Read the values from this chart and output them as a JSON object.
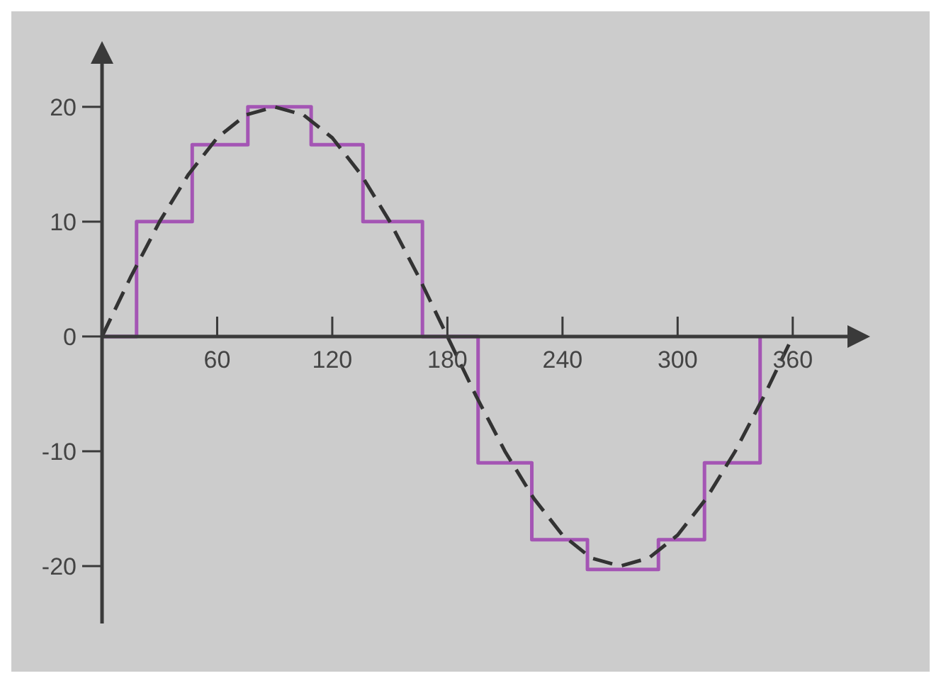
{
  "chart_data": {
    "type": "line",
    "xlim": [
      0,
      390
    ],
    "ylim": [
      -25,
      24
    ],
    "xticks": [
      {
        "value": 0,
        "label": null
      },
      60,
      120,
      180,
      240,
      300,
      360
    ],
    "yticks": [
      -20,
      -10,
      0,
      10,
      20
    ],
    "grid": false,
    "series": [
      {
        "type": "step",
        "color": "#a455b4",
        "line_style": "solid",
        "x": [
          0,
          18,
          47,
          76,
          109,
          136,
          167,
          196,
          224,
          253,
          290,
          314,
          343
        ],
        "values": [
          0,
          10,
          16.7,
          20,
          16.7,
          10,
          0,
          -11,
          -17.7,
          -20.3,
          -17.7,
          -11,
          0
        ]
      },
      {
        "color": "#333333",
        "line_style": "dashed",
        "x": [
          0,
          15,
          30,
          45,
          60,
          75,
          90,
          105,
          120,
          135,
          150,
          165,
          180,
          195,
          210,
          225,
          240,
          255,
          270,
          285,
          300,
          315,
          330,
          345,
          358
        ],
        "values": [
          0,
          5.2,
          10,
          14.1,
          17.3,
          19.3,
          20,
          19.3,
          17.3,
          14.1,
          10,
          5.2,
          0,
          -5.2,
          -10,
          -14.1,
          -17.3,
          -19.3,
          -20,
          -19.3,
          -17.3,
          -14.1,
          -10,
          -5.2,
          -0.7
        ]
      }
    ]
  }
}
